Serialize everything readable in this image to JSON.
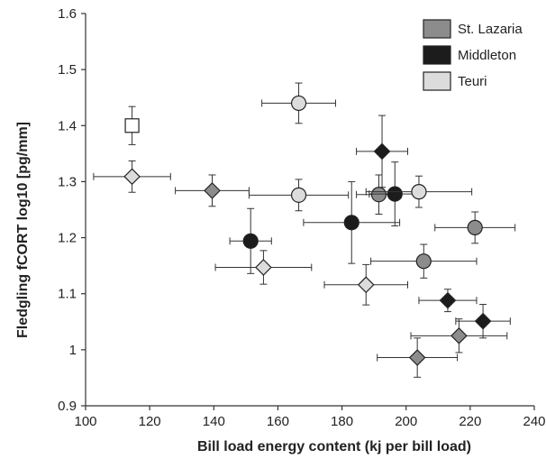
{
  "chart_data": {
    "type": "scatter",
    "title": "",
    "xlabel": "Bill load energy content (kj per bill load)",
    "ylabel": "Fledgling fCORT  log10 [pg/mm]",
    "xlim": [
      100,
      240
    ],
    "ylim": [
      0.9,
      1.6
    ],
    "x_ticks": [
      "100",
      "120",
      "140",
      "160",
      "180",
      "200",
      "220",
      "240"
    ],
    "y_ticks": [
      "0.9",
      "1",
      "1.1",
      "1.2",
      "1.3",
      "1.4",
      "1.5",
      "1.6"
    ],
    "grid": false,
    "legend_position": "top-right",
    "legend": [
      {
        "name": "St. Lazaria",
        "color": "#8c8c8c"
      },
      {
        "name": "Middleton",
        "color": "#1c1c1c"
      },
      {
        "name": "Teuri",
        "color": "#dcdcdc"
      }
    ],
    "series": [
      {
        "name": "St. Lazaria",
        "color": "#8c8c8c",
        "points": [
          {
            "x": 191.5,
            "y": 1.277,
            "xerr": 7,
            "yerr": 0.035,
            "shape": "circle"
          },
          {
            "x": 205.5,
            "y": 1.158,
            "xerr": 16.5,
            "yerr": 0.03,
            "shape": "circle"
          },
          {
            "x": 221.5,
            "y": 1.218,
            "xerr": 12.5,
            "yerr": 0.028,
            "shape": "circle"
          },
          {
            "x": 139.5,
            "y": 1.284,
            "xerr": 11.5,
            "yerr": 0.028,
            "shape": "diamond"
          },
          {
            "x": 216.5,
            "y": 1.025,
            "xerr": 15,
            "yerr": 0.03,
            "shape": "diamond"
          },
          {
            "x": 203.5,
            "y": 0.986,
            "xerr": 12.5,
            "yerr": 0.035,
            "shape": "diamond"
          }
        ]
      },
      {
        "name": "Middleton",
        "color": "#1c1c1c",
        "points": [
          {
            "x": 151.5,
            "y": 1.194,
            "xerr": 6.5,
            "yerr": 0.058,
            "shape": "circle"
          },
          {
            "x": 183,
            "y": 1.227,
            "xerr": 15,
            "yerr": 0.073,
            "shape": "circle"
          },
          {
            "x": 196.5,
            "y": 1.278,
            "xerr": 8,
            "yerr": 0.057,
            "shape": "circle"
          },
          {
            "x": 192.5,
            "y": 1.354,
            "xerr": 8,
            "yerr": 0.064,
            "shape": "diamond"
          },
          {
            "x": 213,
            "y": 1.088,
            "xerr": 9,
            "yerr": 0.02,
            "shape": "diamond"
          },
          {
            "x": 224,
            "y": 1.051,
            "xerr": 8.5,
            "yerr": 0.03,
            "shape": "diamond"
          }
        ]
      },
      {
        "name": "Teuri",
        "color": "#dcdcdc",
        "points": [
          {
            "x": 166.5,
            "y": 1.44,
            "xerr": 11.5,
            "yerr": 0.036,
            "shape": "circle"
          },
          {
            "x": 166.5,
            "y": 1.276,
            "xerr": 15.5,
            "yerr": 0.028,
            "shape": "circle"
          },
          {
            "x": 204,
            "y": 1.282,
            "xerr": 16.5,
            "yerr": 0.028,
            "shape": "circle"
          },
          {
            "x": 114.5,
            "y": 1.309,
            "xerr": 12,
            "yerr": 0.028,
            "shape": "diamond"
          },
          {
            "x": 155.5,
            "y": 1.147,
            "xerr": 15,
            "yerr": 0.03,
            "shape": "diamond"
          },
          {
            "x": 187.5,
            "y": 1.116,
            "xerr": 13,
            "yerr": 0.036,
            "shape": "diamond"
          },
          {
            "x": 114.5,
            "y": 1.4,
            "xerr": 0,
            "yerr": 0.034,
            "shape": "square",
            "fill": "#ffffff"
          }
        ]
      }
    ]
  }
}
